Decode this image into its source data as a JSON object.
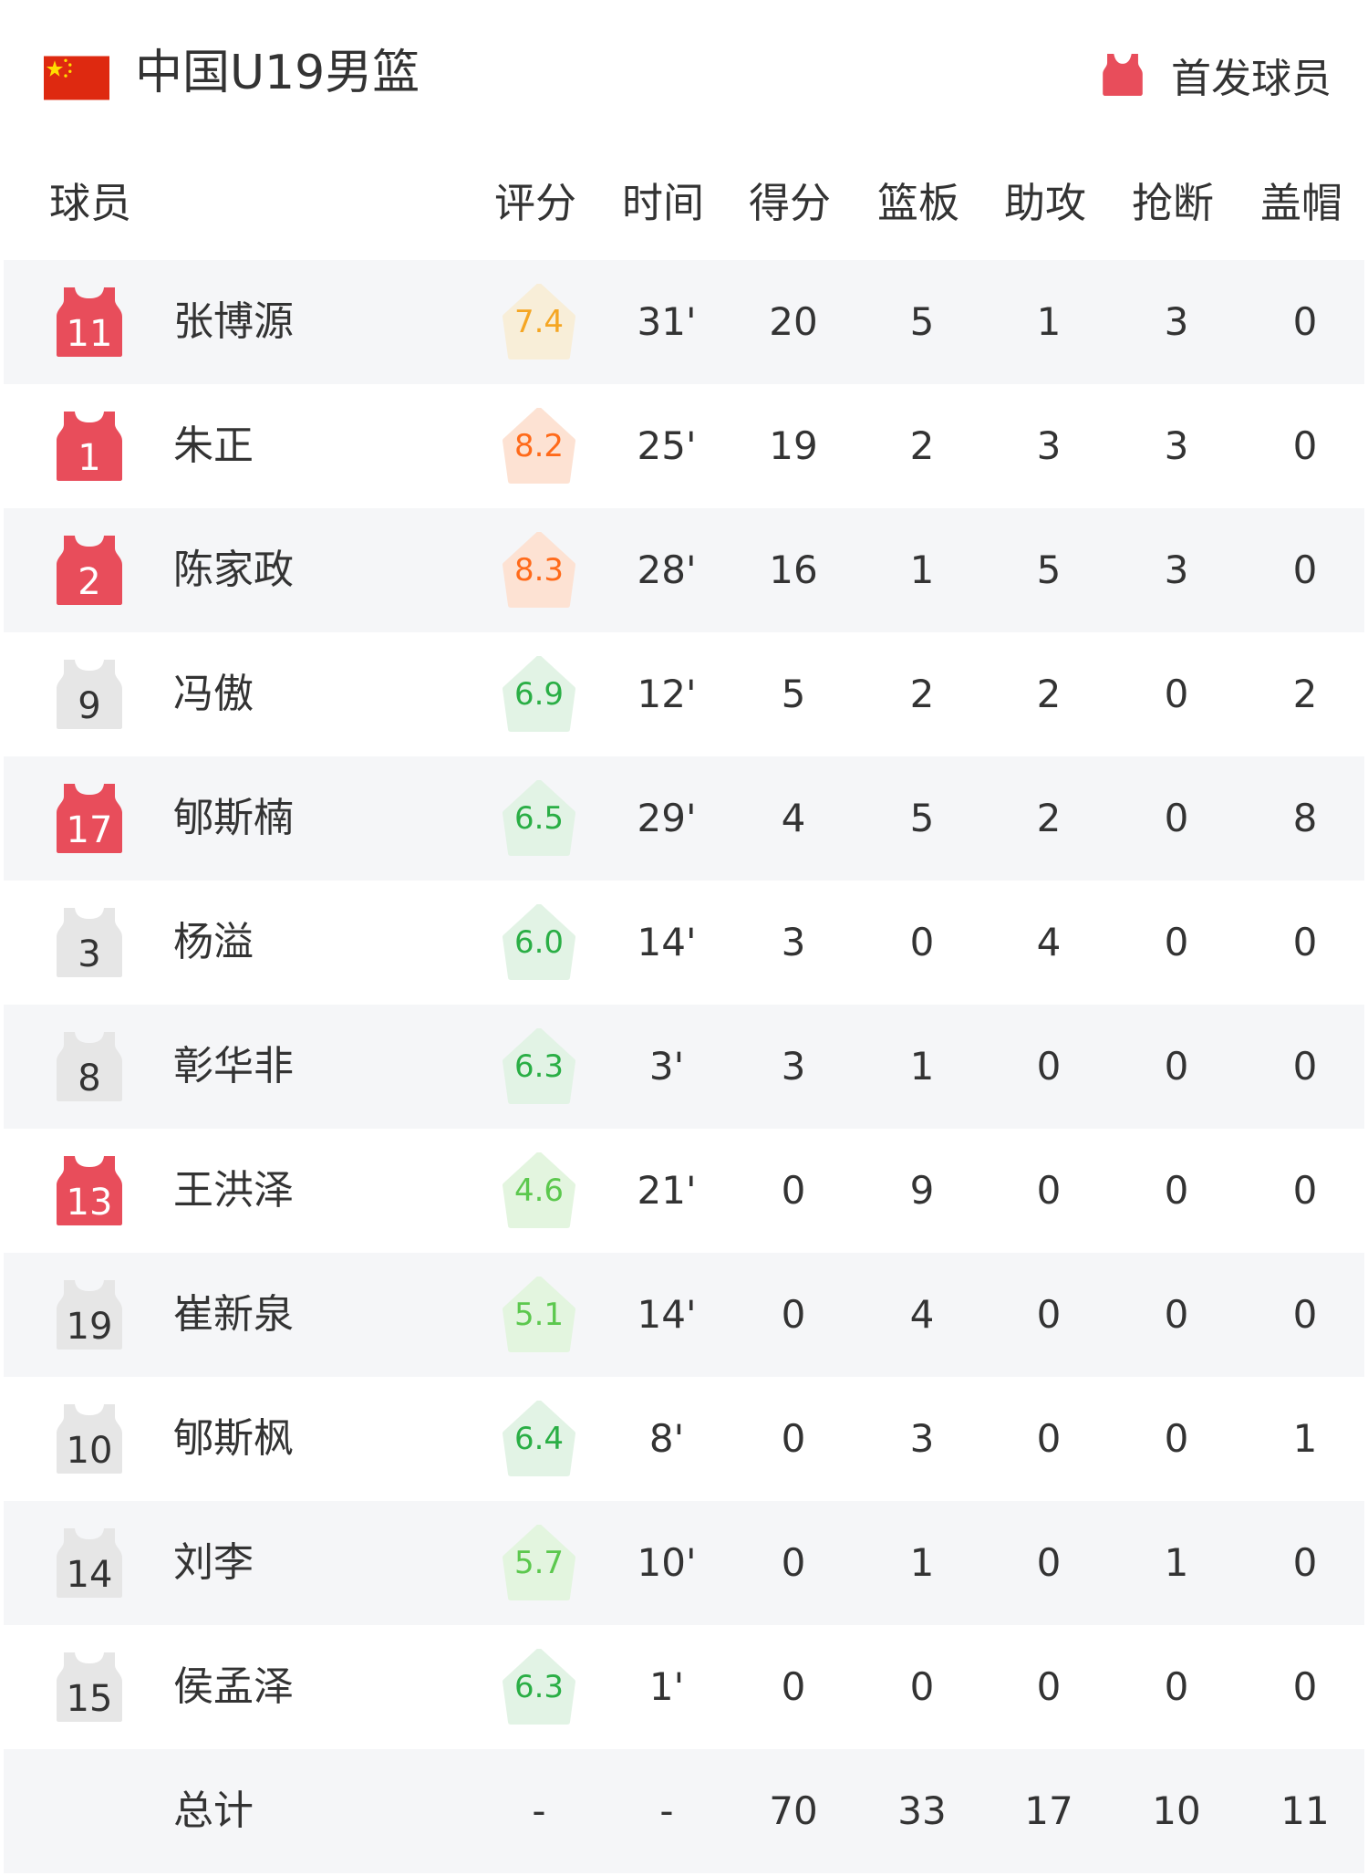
{
  "header": {
    "title": "中国U19男篮",
    "flag_icon": "china-flag-icon",
    "legend_label": "首发球员",
    "starter_color": "#e84d5b",
    "bench_color": "#e6e6e6"
  },
  "columns": [
    "球员",
    "评分",
    "时间",
    "得分",
    "篮板",
    "助攻",
    "抢断",
    "盖帽"
  ],
  "rating_colors": {
    "orange": {
      "text": "#ff6a1a",
      "bg": "#fde2d3"
    },
    "yellow": {
      "text": "#f5a623",
      "bg": "#f8eed8"
    },
    "green": {
      "text": "#2aae45",
      "bg": "#e2f3e5"
    },
    "lightgreen": {
      "text": "#5cc84e",
      "bg": "#e3f5df"
    }
  },
  "players": [
    {
      "number": "11",
      "name": "张博源",
      "starter": true,
      "rating": "7.4",
      "rating_color": "yellow",
      "time": "31'",
      "pts": "20",
      "reb": "5",
      "ast": "1",
      "stl": "3",
      "blk": "0"
    },
    {
      "number": "1",
      "name": "朱正",
      "starter": true,
      "rating": "8.2",
      "rating_color": "orange",
      "time": "25'",
      "pts": "19",
      "reb": "2",
      "ast": "3",
      "stl": "3",
      "blk": "0"
    },
    {
      "number": "2",
      "name": "陈家政",
      "starter": true,
      "rating": "8.3",
      "rating_color": "orange",
      "time": "28'",
      "pts": "16",
      "reb": "1",
      "ast": "5",
      "stl": "3",
      "blk": "0"
    },
    {
      "number": "9",
      "name": "冯傲",
      "starter": false,
      "rating": "6.9",
      "rating_color": "green",
      "time": "12'",
      "pts": "5",
      "reb": "2",
      "ast": "2",
      "stl": "0",
      "blk": "2"
    },
    {
      "number": "17",
      "name": "郇斯楠",
      "starter": true,
      "rating": "6.5",
      "rating_color": "green",
      "time": "29'",
      "pts": "4",
      "reb": "5",
      "ast": "2",
      "stl": "0",
      "blk": "8"
    },
    {
      "number": "3",
      "name": "杨溢",
      "starter": false,
      "rating": "6.0",
      "rating_color": "green",
      "time": "14'",
      "pts": "3",
      "reb": "0",
      "ast": "4",
      "stl": "0",
      "blk": "0"
    },
    {
      "number": "8",
      "name": "彰华非",
      "starter": false,
      "rating": "6.3",
      "rating_color": "green",
      "time": "3'",
      "pts": "3",
      "reb": "1",
      "ast": "0",
      "stl": "0",
      "blk": "0"
    },
    {
      "number": "13",
      "name": "王洪泽",
      "starter": true,
      "rating": "4.6",
      "rating_color": "lightgreen",
      "time": "21'",
      "pts": "0",
      "reb": "9",
      "ast": "0",
      "stl": "0",
      "blk": "0"
    },
    {
      "number": "19",
      "name": "崔新泉",
      "starter": false,
      "rating": "5.1",
      "rating_color": "lightgreen",
      "time": "14'",
      "pts": "0",
      "reb": "4",
      "ast": "0",
      "stl": "0",
      "blk": "0"
    },
    {
      "number": "10",
      "name": "郇斯枫",
      "starter": false,
      "rating": "6.4",
      "rating_color": "green",
      "time": "8'",
      "pts": "0",
      "reb": "3",
      "ast": "0",
      "stl": "0",
      "blk": "1"
    },
    {
      "number": "14",
      "name": "刘李",
      "starter": false,
      "rating": "5.7",
      "rating_color": "lightgreen",
      "time": "10'",
      "pts": "0",
      "reb": "1",
      "ast": "0",
      "stl": "1",
      "blk": "0"
    },
    {
      "number": "15",
      "name": "侯孟泽",
      "starter": false,
      "rating": "6.3",
      "rating_color": "green",
      "time": "1'",
      "pts": "0",
      "reb": "0",
      "ast": "0",
      "stl": "0",
      "blk": "0"
    }
  ],
  "total": {
    "label": "总计",
    "rating": "-",
    "time": "-",
    "pts": "70",
    "reb": "33",
    "ast": "17",
    "stl": "10",
    "blk": "11"
  }
}
